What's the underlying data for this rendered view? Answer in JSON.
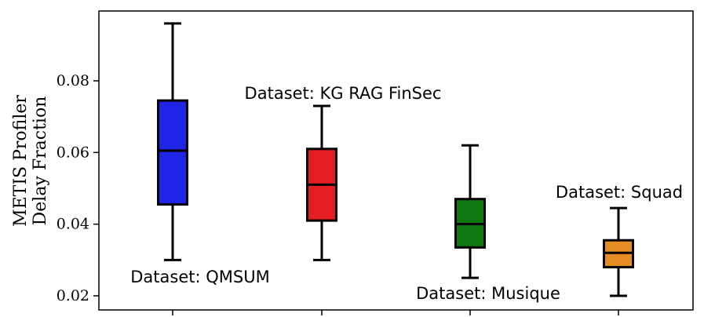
{
  "chart_data": {
    "type": "box",
    "title": "",
    "xlabel": "",
    "ylabel_lines": [
      "METIS Profiler",
      "Delay Fraction"
    ],
    "ylim": [
      0.0175,
      0.1
    ],
    "yticks": [
      0.02,
      0.04,
      0.06,
      0.08
    ],
    "ytick_labels": [
      "0.02",
      "0.04",
      "0.06",
      "0.08"
    ],
    "grid": false,
    "legend": "none",
    "boxes": [
      {
        "name": "Dataset: QMSUM",
        "color": "#1f24e6",
        "min": 0.03,
        "q1": 0.0455,
        "median": 0.0605,
        "q3": 0.0745,
        "max": 0.096
      },
      {
        "name": "Dataset: KG RAG FinSec",
        "color": "#e21e22",
        "min": 0.03,
        "q1": 0.041,
        "median": 0.051,
        "q3": 0.061,
        "max": 0.073
      },
      {
        "name": "Dataset: Musique",
        "color": "#107710",
        "min": 0.025,
        "q1": 0.0335,
        "median": 0.04,
        "q3": 0.047,
        "max": 0.062
      },
      {
        "name": "Dataset: Squad",
        "color": "#e58d22",
        "min": 0.02,
        "q1": 0.028,
        "median": 0.032,
        "q3": 0.0355,
        "max": 0.0445
      }
    ]
  }
}
